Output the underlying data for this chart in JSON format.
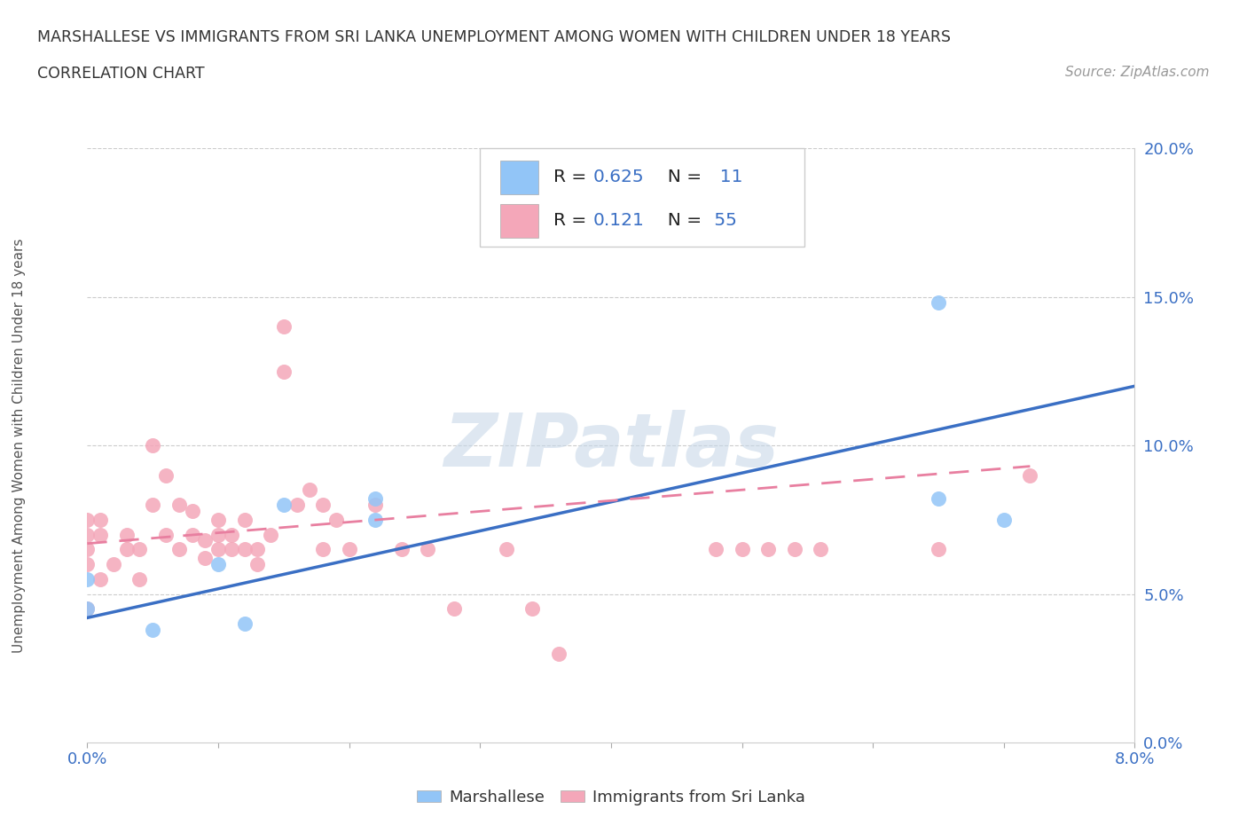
{
  "title_line1": "MARSHALLESE VS IMMIGRANTS FROM SRI LANKA UNEMPLOYMENT AMONG WOMEN WITH CHILDREN UNDER 18 YEARS",
  "title_line2": "CORRELATION CHART",
  "source": "Source: ZipAtlas.com",
  "ylabel_label": "Unemployment Among Women with Children Under 18 years",
  "xmin": 0.0,
  "xmax": 0.08,
  "ymin": 0.0,
  "ymax": 0.2,
  "xticks": [
    0.0,
    0.01,
    0.02,
    0.03,
    0.04,
    0.05,
    0.06,
    0.07,
    0.08
  ],
  "yticks": [
    0.0,
    0.05,
    0.1,
    0.15,
    0.2
  ],
  "xlabel_show": [
    "0.0%",
    "",
    "",
    "",
    "",
    "",
    "",
    "",
    "8.0%"
  ],
  "ylabel_ticks": [
    "0.0%",
    "5.0%",
    "10.0%",
    "15.0%",
    "20.0%"
  ],
  "marshallese_color": "#92c5f7",
  "sri_lanka_color": "#f4a7b9",
  "blue_line_color": "#3a6fc4",
  "pink_line_color": "#e87fa0",
  "watermark_color": "#c8d8e8",
  "legend_R1": "0.625",
  "legend_N1": "11",
  "legend_R2": "0.121",
  "legend_N2": "55",
  "marshallese_x": [
    0.0,
    0.0,
    0.005,
    0.01,
    0.012,
    0.015,
    0.022,
    0.022,
    0.065,
    0.065,
    0.07
  ],
  "marshallese_y": [
    0.045,
    0.055,
    0.038,
    0.06,
    0.04,
    0.08,
    0.075,
    0.082,
    0.082,
    0.148,
    0.075
  ],
  "sri_lanka_x": [
    0.0,
    0.0,
    0.0,
    0.0,
    0.001,
    0.001,
    0.002,
    0.003,
    0.003,
    0.004,
    0.004,
    0.005,
    0.005,
    0.006,
    0.006,
    0.007,
    0.007,
    0.008,
    0.008,
    0.009,
    0.009,
    0.01,
    0.01,
    0.01,
    0.011,
    0.011,
    0.012,
    0.012,
    0.013,
    0.013,
    0.014,
    0.015,
    0.015,
    0.016,
    0.017,
    0.018,
    0.018,
    0.019,
    0.02,
    0.022,
    0.024,
    0.026,
    0.028,
    0.032,
    0.034,
    0.036,
    0.048,
    0.05,
    0.052,
    0.054,
    0.056,
    0.065,
    0.072,
    0.0,
    0.001
  ],
  "sri_lanka_y": [
    0.06,
    0.065,
    0.07,
    0.075,
    0.07,
    0.075,
    0.06,
    0.065,
    0.07,
    0.055,
    0.065,
    0.08,
    0.1,
    0.07,
    0.09,
    0.065,
    0.08,
    0.07,
    0.078,
    0.062,
    0.068,
    0.065,
    0.07,
    0.075,
    0.065,
    0.07,
    0.065,
    0.075,
    0.06,
    0.065,
    0.07,
    0.125,
    0.14,
    0.08,
    0.085,
    0.065,
    0.08,
    0.075,
    0.065,
    0.08,
    0.065,
    0.065,
    0.045,
    0.065,
    0.045,
    0.03,
    0.065,
    0.065,
    0.065,
    0.065,
    0.065,
    0.065,
    0.09,
    0.045,
    0.055
  ],
  "blue_line_x0": 0.0,
  "blue_line_y0": 0.042,
  "blue_line_x1": 0.08,
  "blue_line_y1": 0.12,
  "pink_line_x0": 0.0,
  "pink_line_y0": 0.067,
  "pink_line_x1": 0.072,
  "pink_line_y1": 0.093
}
